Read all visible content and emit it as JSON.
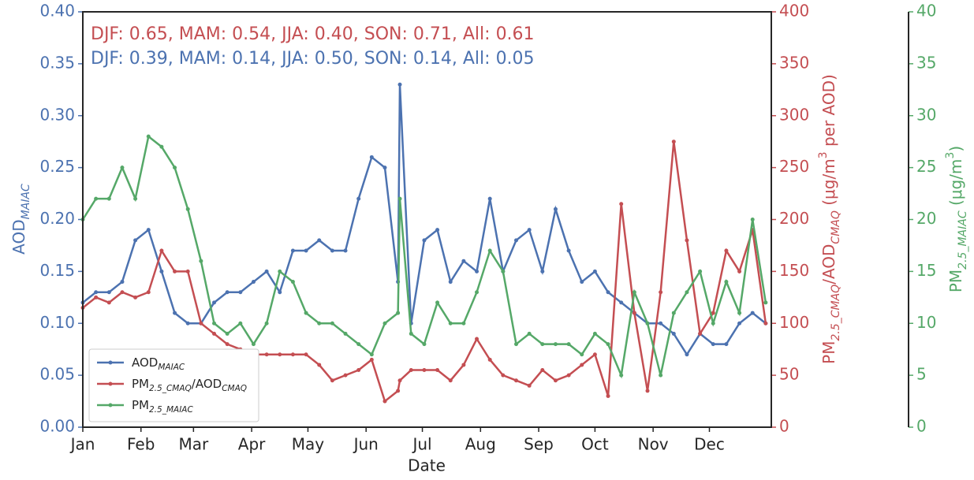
{
  "chart_data": {
    "type": "line",
    "xlabel": "Date",
    "ylabel": "AOD_{MAIAC}",
    "y2label": "PM_{2.5_CMAQ}/AOD_{CMAQ} (μg/m^{3} per AOD)",
    "y3label": "PM_{2.5_MAIAC} (μg/m^{3})",
    "annotations": [
      {
        "text": "DJF: 0.65, MAM: 0.54, JJA: 0.40, SON: 0.71, All: 0.61",
        "color": "#c44e52"
      },
      {
        "text": "DJF: 0.39, MAM: 0.14, JJA: 0.50, SON: 0.14, All: 0.05",
        "color": "#4c72b0"
      }
    ],
    "xlim": [
      0,
      367
    ],
    "xticks": [
      {
        "value": 0,
        "label": "Jan"
      },
      {
        "value": 31,
        "label": "Feb"
      },
      {
        "value": 59,
        "label": "Mar"
      },
      {
        "value": 90,
        "label": "Apr"
      },
      {
        "value": 120,
        "label": "May"
      },
      {
        "value": 151,
        "label": "Jun"
      },
      {
        "value": 181,
        "label": "Jul"
      },
      {
        "value": 212,
        "label": "Aug"
      },
      {
        "value": 243,
        "label": "Sep"
      },
      {
        "value": 273,
        "label": "Oct"
      },
      {
        "value": 304,
        "label": "Nov"
      },
      {
        "value": 334,
        "label": "Dec"
      }
    ],
    "ylim": [
      0,
      0.4
    ],
    "yticks": [
      {
        "value": 0,
        "label": "0.00"
      },
      {
        "value": 0.05,
        "label": "0.05"
      },
      {
        "value": 0.1,
        "label": "0.10"
      },
      {
        "value": 0.15,
        "label": "0.15"
      },
      {
        "value": 0.2,
        "label": "0.20"
      },
      {
        "value": 0.25,
        "label": "0.25"
      },
      {
        "value": 0.3,
        "label": "0.30"
      },
      {
        "value": 0.35,
        "label": "0.35"
      },
      {
        "value": 0.4,
        "label": "0.40"
      }
    ],
    "y2lim": [
      0,
      400
    ],
    "y2ticks": [
      0,
      50,
      100,
      150,
      200,
      250,
      300,
      350,
      400
    ],
    "y3lim": [
      0,
      40
    ],
    "y3ticks": [
      0,
      5,
      10,
      15,
      20,
      25,
      30,
      35,
      40
    ],
    "legend": "lower left",
    "x": [
      0,
      7,
      14,
      21,
      28,
      35,
      42,
      49,
      56,
      63,
      70,
      77,
      84,
      91,
      98,
      105,
      112,
      119,
      126,
      133,
      140,
      147,
      154,
      161,
      168,
      169,
      175,
      182,
      189,
      196,
      203,
      210,
      217,
      224,
      231,
      238,
      245,
      252,
      259,
      266,
      273,
      280,
      287,
      294,
      301,
      308,
      315,
      322,
      329,
      336,
      343,
      350,
      357,
      364
    ],
    "series": [
      {
        "name": "AOD_{MAIAC}",
        "color": "#4c72b0",
        "axis": "y",
        "values": [
          0.12,
          0.13,
          0.13,
          0.14,
          0.18,
          0.19,
          0.15,
          0.11,
          0.1,
          0.1,
          0.12,
          0.13,
          0.13,
          0.14,
          0.15,
          0.13,
          0.17,
          0.17,
          0.18,
          0.17,
          0.17,
          0.22,
          0.26,
          0.25,
          0.14,
          0.33,
          0.1,
          0.18,
          0.19,
          0.14,
          0.16,
          0.15,
          0.22,
          0.15,
          0.18,
          0.19,
          0.15,
          0.21,
          0.17,
          0.14,
          0.15,
          0.13,
          0.12,
          0.11,
          0.1,
          0.1,
          0.09,
          0.07,
          0.09,
          0.08,
          0.08,
          0.1,
          0.11,
          0.1
        ]
      },
      {
        "name": "PM_{2.5_CMAQ}/AOD_{CMAQ}",
        "color": "#c44e52",
        "axis": "y2",
        "values": [
          115,
          125,
          120,
          130,
          125,
          130,
          170,
          150,
          150,
          100,
          90,
          80,
          75,
          70,
          70,
          70,
          70,
          70,
          60,
          45,
          50,
          55,
          65,
          25,
          35,
          45,
          55,
          55,
          55,
          45,
          60,
          85,
          65,
          50,
          45,
          40,
          55,
          45,
          50,
          60,
          70,
          30,
          215,
          110,
          35,
          130,
          275,
          180,
          90,
          110,
          170,
          150,
          190,
          100
        ]
      },
      {
        "name": "PM_{2.5_MAIAC}",
        "color": "#55a868",
        "axis": "y3",
        "values": [
          20,
          22,
          22,
          25,
          22,
          28,
          27,
          25,
          21,
          16,
          10,
          9,
          10,
          8,
          10,
          15,
          14,
          11,
          10,
          10,
          9,
          8,
          7,
          10,
          11,
          22,
          9,
          8,
          12,
          10,
          10,
          13,
          17,
          15,
          8,
          9,
          8,
          8,
          8,
          7,
          9,
          8,
          5,
          13,
          10,
          5,
          11,
          13,
          15,
          10,
          14,
          11,
          20,
          12
        ]
      }
    ]
  }
}
